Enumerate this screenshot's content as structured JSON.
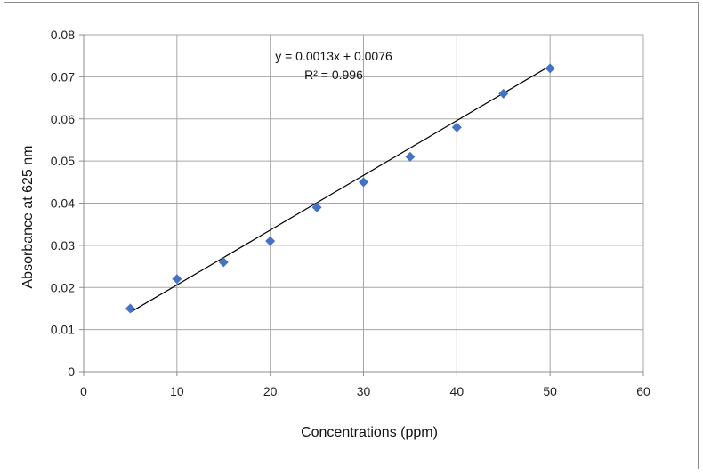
{
  "chart_data": {
    "type": "scatter",
    "title": "",
    "xlabel": "Concentrations (ppm)",
    "ylabel": "Absorbance at 625 nm",
    "xlim": [
      0,
      60
    ],
    "ylim": [
      0,
      0.08
    ],
    "x_ticks": [
      "0",
      "10",
      "20",
      "30",
      "40",
      "50",
      "60"
    ],
    "y_ticks": [
      "0",
      "0.01",
      "0.02",
      "0.03",
      "0.04",
      "0.05",
      "0.06",
      "0.07",
      "0.08"
    ],
    "grid": true,
    "legend": "none",
    "marker": "diamond",
    "marker_color": "#4472C4",
    "series": [
      {
        "x": [
          5,
          10,
          15,
          20,
          25,
          30,
          35,
          40,
          45,
          50
        ],
        "y": [
          0.015,
          0.022,
          0.026,
          0.031,
          0.039,
          0.045,
          0.051,
          0.058,
          0.066,
          0.072
        ]
      }
    ],
    "trendline": {
      "type": "linear",
      "slope": 0.0013,
      "intercept": 0.0076,
      "x_range": [
        5,
        50
      ],
      "color": "#000000",
      "equation_label": "y = 0.0013x + 0.0076",
      "r2_label": "R² = 0.996"
    }
  }
}
